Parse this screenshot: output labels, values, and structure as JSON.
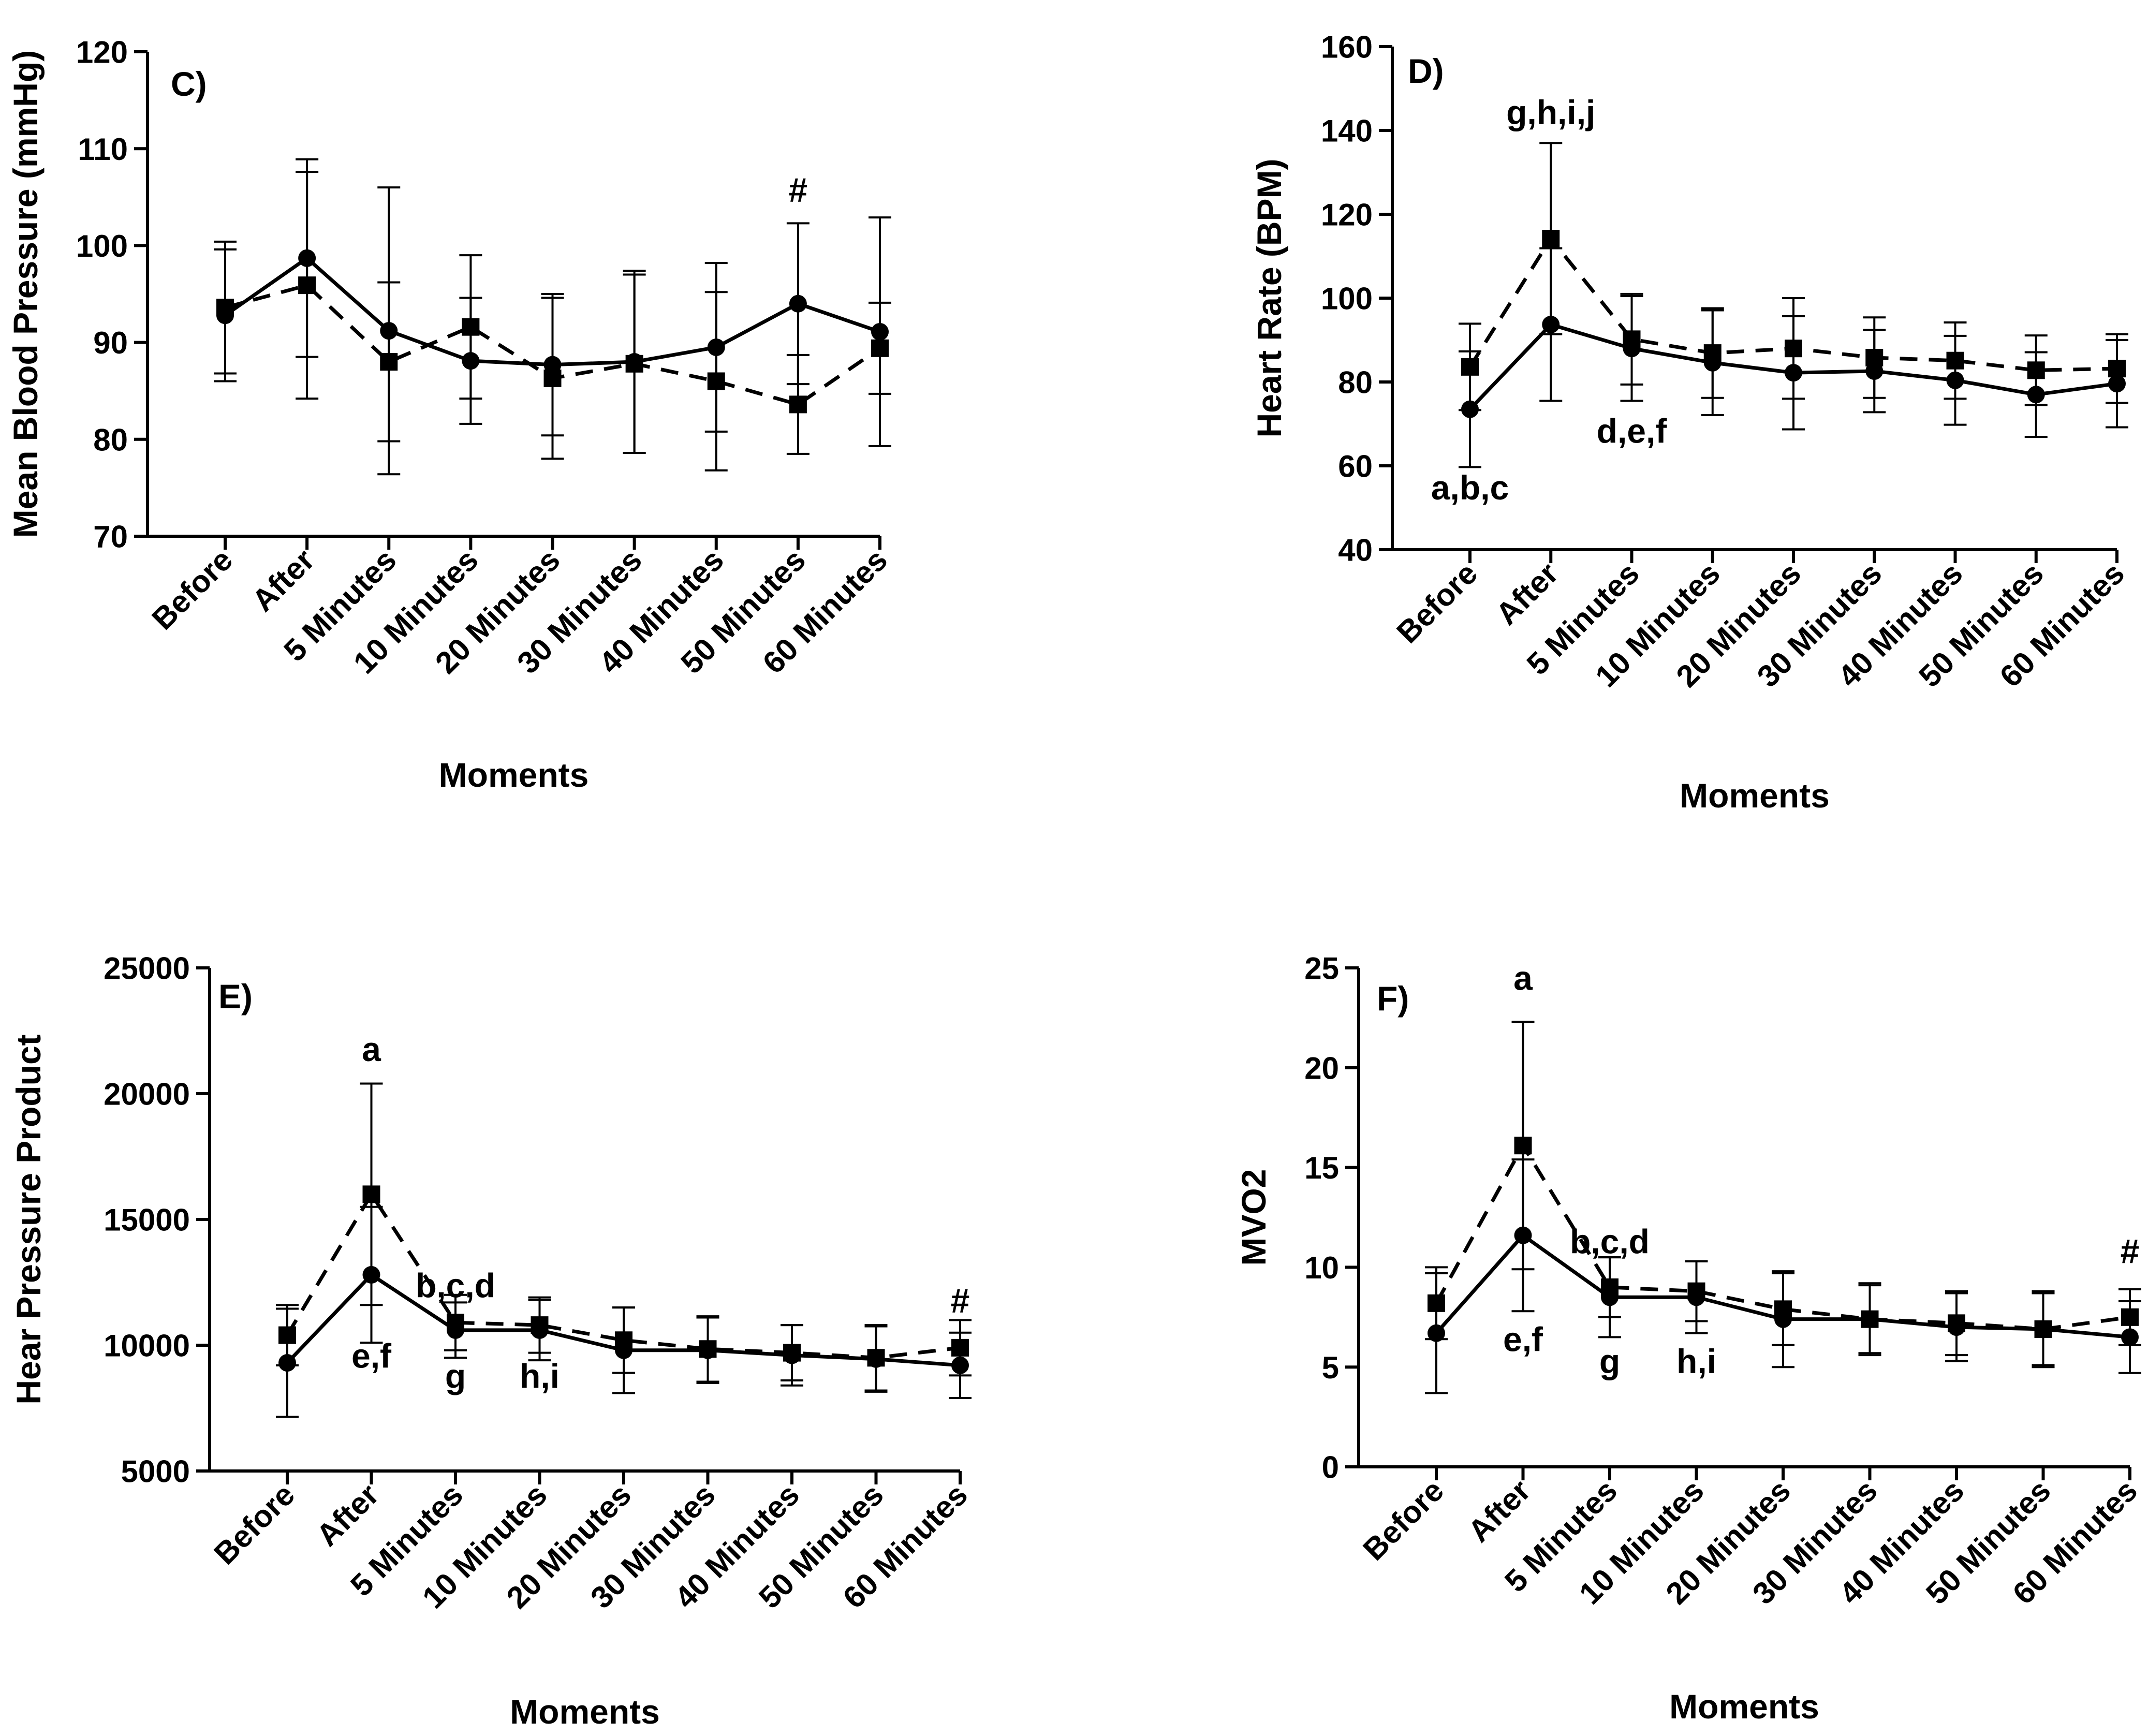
{
  "chart_data": [
    {
      "id": "C",
      "type": "line",
      "panel_label": "C)",
      "title": "",
      "xlabel": "Moments",
      "ylabel": "Mean Blood Pressure (mmHg)",
      "ylim": [
        70,
        120
      ],
      "yticks": [
        70,
        80,
        90,
        100,
        110,
        120
      ],
      "ytick_labels": [
        "70",
        "80",
        "90",
        "100",
        "110",
        "120"
      ],
      "categories": [
        "Before",
        "After",
        "5 Minutes",
        "10 Minutes",
        "20 Minutes",
        "30 Minutes",
        "40 Minutes",
        "50 Minutes",
        "60 Minutes"
      ],
      "grid": false,
      "legend": "none",
      "series": [
        {
          "name": "circle-solid",
          "marker": "circle",
          "style": "solid",
          "values": [
            92.8,
            98.7,
            91.2,
            88.1,
            87.7,
            88.0,
            89.5,
            94.0,
            91.1
          ],
          "errors": [
            6.8,
            10.2,
            14.8,
            6.5,
            7.3,
            9.4,
            8.7,
            8.3,
            11.8
          ]
        },
        {
          "name": "square-dashed",
          "marker": "square",
          "style": "dashed",
          "values": [
            93.6,
            95.9,
            88.0,
            91.6,
            86.3,
            87.8,
            86.0,
            83.6,
            89.4
          ],
          "errors": [
            6.8,
            11.7,
            8.2,
            7.4,
            8.3,
            9.2,
            9.2,
            5.1,
            4.7
          ]
        }
      ],
      "annotations": [
        {
          "text": "#",
          "at": "50 Minutes",
          "value": 104.5
        }
      ]
    },
    {
      "id": "D",
      "type": "line",
      "panel_label": "D)",
      "title": "",
      "xlabel": "Moments",
      "ylabel": "Heart Rate (BPM)",
      "ylim": [
        40,
        160
      ],
      "yticks": [
        40,
        60,
        80,
        100,
        120,
        140,
        160
      ],
      "ytick_labels": [
        "40",
        "60",
        "80",
        "100",
        "120",
        "140",
        "160"
      ],
      "categories": [
        "Before",
        "After",
        "5 Minutes",
        "10 Minutes",
        "20 Minutes",
        "30 Minutes",
        "40 Minutes",
        "50 Minutes",
        "60 Minutes"
      ],
      "grid": false,
      "legend": "none",
      "series": [
        {
          "name": "circle-solid",
          "marker": "circle",
          "style": "solid",
          "values": [
            73.5,
            93.7,
            88.0,
            84.6,
            82.2,
            82.6,
            80.4,
            77.0,
            79.6
          ],
          "errors": [
            13.8,
            18.2,
            12.5,
            12.5,
            13.5,
            9.8,
            10.6,
            10.1,
            10.4
          ]
        },
        {
          "name": "square-dashed",
          "marker": "square",
          "style": "dashed",
          "values": [
            83.6,
            114.2,
            90.2,
            86.9,
            88.0,
            85.8,
            85.1,
            82.8,
            83.2
          ],
          "errors": [
            10.3,
            22.8,
            10.8,
            10.7,
            12.0,
            9.6,
            9.1,
            8.3,
            8.2
          ]
        }
      ],
      "annotations": [
        {
          "text": "a,b,c",
          "at": "Before",
          "value": 52.0
        },
        {
          "text": "g,h,i,j",
          "at": "After",
          "value": 141.5
        },
        {
          "text": "d,e,f",
          "at": "5 Minutes",
          "value": 65.5
        }
      ]
    },
    {
      "id": "E",
      "type": "line",
      "panel_label": "E)",
      "title": "",
      "xlabel": "Moments",
      "ylabel": "Hear Pressure Product",
      "ylim": [
        5000,
        25000
      ],
      "yticks": [
        5000,
        10000,
        15000,
        20000,
        25000
      ],
      "ytick_labels": [
        "5000",
        "10000",
        "15000",
        "20000",
        "25000"
      ],
      "categories": [
        "Before",
        "After",
        "5 Minutes",
        "10 Minutes",
        "20 Minutes",
        "30 Minutes",
        "40 Minutes",
        "50 Minutes",
        "60 Minutes"
      ],
      "grid": false,
      "legend": "none",
      "series": [
        {
          "name": "circle-solid",
          "marker": "circle",
          "style": "solid",
          "values": [
            9300,
            12800,
            10600,
            10600,
            9800,
            9800,
            9600,
            9450,
            9200
          ],
          "errors": [
            2150,
            2700,
            1100,
            1200,
            1700,
            1300,
            1200,
            1300,
            1300
          ]
        },
        {
          "name": "square-dashed",
          "marker": "square",
          "style": "dashed",
          "values": [
            10400,
            16000,
            10900,
            10800,
            10200,
            9850,
            9700,
            9500,
            9900
          ],
          "errors": [
            1200,
            4400,
            1100,
            1100,
            1300,
            1300,
            1100,
            1300,
            1100
          ]
        }
      ],
      "annotations": [
        {
          "text": "a",
          "at": "After",
          "value": 21300
        },
        {
          "text": "e,f",
          "at": "After",
          "value": 9100
        },
        {
          "text": "b,c,d",
          "at": "5 Minutes",
          "value": 11900
        },
        {
          "text": "g",
          "at": "5 Minutes",
          "value": 8300
        },
        {
          "text": "h,i",
          "at": "10 Minutes",
          "value": 8300
        },
        {
          "text": "#",
          "at": "60 Minutes",
          "value": 11300
        }
      ]
    },
    {
      "id": "F",
      "type": "line",
      "panel_label": "F)",
      "title": "",
      "xlabel": "Moments",
      "ylabel": "MVO2",
      "ylim": [
        0,
        25
      ],
      "yticks": [
        0,
        5,
        10,
        15,
        20,
        25
      ],
      "ytick_labels": [
        "0",
        "5",
        "10",
        "15",
        "20",
        "25"
      ],
      "categories": [
        "Before",
        "After",
        "5 Minutes",
        "10 Minutes",
        "20 Minutes",
        "30 Minutes",
        "40 Minutes",
        "50 Minutes",
        "60 Minutes"
      ],
      "grid": false,
      "legend": "none",
      "series": [
        {
          "name": "circle-solid",
          "marker": "circle",
          "style": "solid",
          "values": [
            6.7,
            11.6,
            8.5,
            8.5,
            7.4,
            7.4,
            7.0,
            6.9,
            6.5
          ],
          "errors": [
            3.0,
            3.8,
            2.0,
            1.8,
            2.4,
            1.7,
            1.7,
            1.8,
            1.8
          ]
        },
        {
          "name": "square-dashed",
          "marker": "square",
          "style": "dashed",
          "values": [
            8.2,
            16.1,
            9.0,
            8.8,
            7.9,
            7.4,
            7.2,
            6.9,
            7.5
          ],
          "errors": [
            1.8,
            6.2,
            1.5,
            1.5,
            1.8,
            1.8,
            1.6,
            1.9,
            1.4
          ]
        }
      ],
      "annotations": [
        {
          "text": "a",
          "at": "After",
          "value": 23.9
        },
        {
          "text": "e,f",
          "at": "After",
          "value": 5.8
        },
        {
          "text": "b,c,d",
          "at": "5 Minutes",
          "value": 10.7
        },
        {
          "text": "g",
          "at": "5 Minutes",
          "value": 4.7
        },
        {
          "text": "h,i",
          "at": "10 Minutes",
          "value": 4.7
        },
        {
          "text": "#",
          "at": "60 Minutes",
          "value": 10.2
        }
      ]
    }
  ]
}
